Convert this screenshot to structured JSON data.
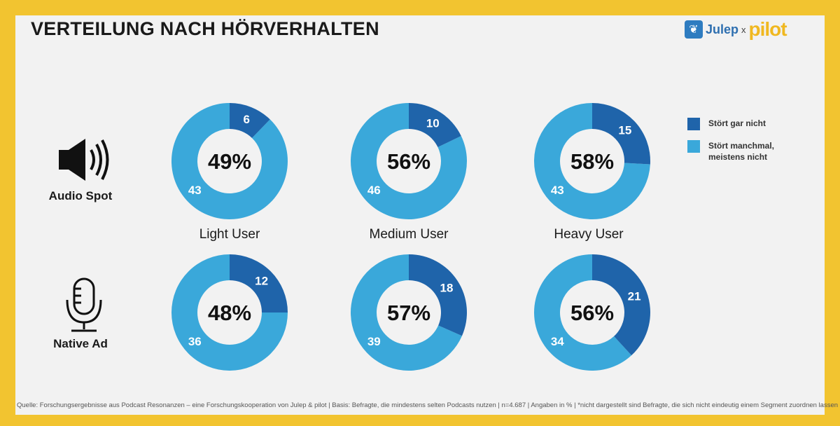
{
  "title": "VERTEILUNG NACH HÖRVERHALTEN",
  "logo": {
    "brand1": "Julep",
    "separator": "x",
    "brand2": "pilot"
  },
  "colors": {
    "frame": "#f2c430",
    "dark": "#1f64aa",
    "light": "#3aa8da"
  },
  "chart_data": {
    "type": "pie",
    "variant": "donut",
    "rows": [
      "Audio Spot",
      "Native Ad"
    ],
    "row_icons": [
      "speaker-icon",
      "microphone-icon"
    ],
    "categories": [
      "Light User",
      "Medium User",
      "Heavy User"
    ],
    "series": [
      {
        "name": "Stört gar nicht"
      },
      {
        "name": "Stört manchmal, meistens nicht"
      }
    ],
    "donuts": [
      {
        "row": "Audio Spot",
        "category": "Light User",
        "total": "49%",
        "values": [
          6,
          43
        ]
      },
      {
        "row": "Audio Spot",
        "category": "Medium User",
        "total": "56%",
        "values": [
          10,
          46
        ]
      },
      {
        "row": "Audio Spot",
        "category": "Heavy User",
        "total": "58%",
        "values": [
          15,
          43
        ]
      },
      {
        "row": "Native Ad",
        "category": "Light User",
        "total": "48%",
        "values": [
          12,
          36
        ]
      },
      {
        "row": "Native Ad",
        "category": "Medium User",
        "total": "57%",
        "values": [
          18,
          39
        ]
      },
      {
        "row": "Native Ad",
        "category": "Heavy User",
        "total": "56%",
        "values": [
          21,
          34
        ]
      }
    ],
    "legend_position": "right"
  },
  "footer": "Quelle: Forschungsergebnisse aus Podcast Resonanzen – eine Forschungskooperation von Julep & pilot | Basis: Befragte, die mindestens selten Podcasts nutzen | n=4.687 | Angaben in % | *nicht dargestellt sind Befragte, die sich nicht eindeutig einem Segment zuordnen lassen"
}
